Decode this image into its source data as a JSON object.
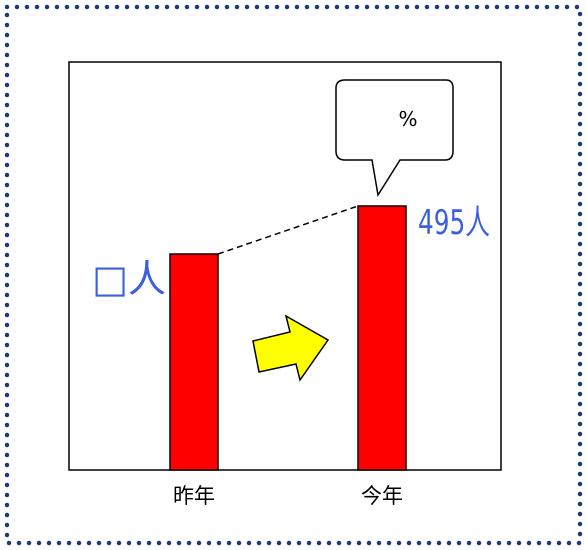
{
  "chart_data": {
    "type": "bar",
    "categories": [
      "昨年",
      "今年"
    ],
    "values": [
      null,
      495
    ],
    "value_labels": [
      "□人",
      "495人"
    ],
    "callout": "%",
    "ylim": [
      0,
      495
    ]
  },
  "colors": {
    "border_dots": "#1a3a7a",
    "bar": "#ff0000",
    "value_text": "#3a5fe0",
    "arrow_fill": "#ffff00"
  }
}
